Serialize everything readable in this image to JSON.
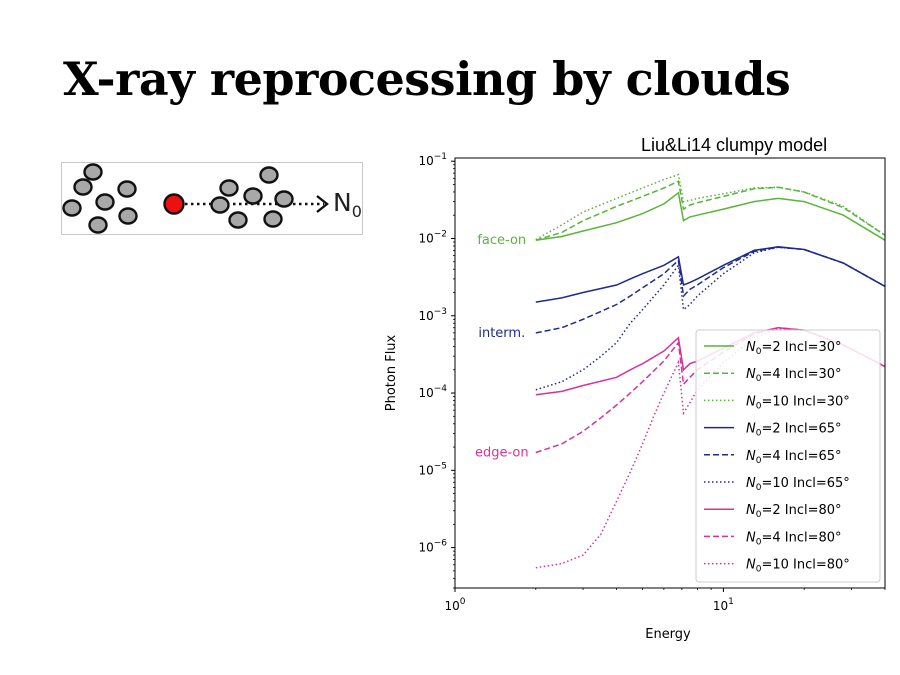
{
  "slide": {
    "title": "X-ray reprocessing by clouds"
  },
  "diagram": {
    "label_main": "N",
    "label_sub": "0"
  },
  "chart_data": {
    "type": "line",
    "title": "Liu&Li14 clumpy model",
    "xlabel": "Energy",
    "ylabel": "Photon Flux",
    "xscale": "log",
    "yscale": "log",
    "xlim": [
      1,
      40
    ],
    "ylim": [
      3e-07,
      0.11
    ],
    "grid": false,
    "legend_placement": "lower-right",
    "x_ticks": [
      {
        "value": 1,
        "base": "10",
        "exp": "0"
      },
      {
        "value": 10,
        "base": "10",
        "exp": "1"
      }
    ],
    "y_ticks": [
      {
        "value": 0.1,
        "base": "10",
        "exp": "−1"
      },
      {
        "value": 0.01,
        "base": "10",
        "exp": "−2"
      },
      {
        "value": 0.001,
        "base": "10",
        "exp": "−3"
      },
      {
        "value": 0.0001,
        "base": "10",
        "exp": "−4"
      },
      {
        "value": 1e-05,
        "base": "10",
        "exp": "−5"
      },
      {
        "value": 1e-06,
        "base": "10",
        "exp": "−6"
      }
    ],
    "annotations": [
      {
        "text": "face-on",
        "color": "#5ab43c",
        "x": 1.6,
        "y": 0.0095
      },
      {
        "text": "interm.",
        "color": "#1f2a8c",
        "x": 1.6,
        "y": 0.0006
      },
      {
        "text": "edge-on",
        "color": "#d6339a",
        "x": 1.6,
        "y": 1.7e-05
      }
    ],
    "series": [
      {
        "name": "N0=2 Incl=30°",
        "legend_main": "N",
        "legend_sub": "0",
        "legend_rest": "=2 Incl=30°",
        "color": "#5ab43c",
        "dash": "solid",
        "x": [
          2,
          2.5,
          3,
          4,
          5,
          6,
          6.8,
          7.1,
          7.5,
          8,
          10,
          13,
          16,
          20,
          28,
          40
        ],
        "y": [
          0.0095,
          0.0106,
          0.0125,
          0.016,
          0.021,
          0.028,
          0.039,
          0.017,
          0.019,
          0.02,
          0.024,
          0.03,
          0.033,
          0.03,
          0.02,
          0.0095
        ]
      },
      {
        "name": "N0=4 Incl=30°",
        "legend_main": "N",
        "legend_sub": "0",
        "legend_rest": "=4 Incl=30°",
        "color": "#5ab43c",
        "dash": "dashed",
        "x": [
          2,
          2.5,
          3,
          4,
          5,
          6,
          6.8,
          7.1,
          7.5,
          8,
          10,
          13,
          16,
          20,
          28,
          40
        ],
        "y": [
          0.0095,
          0.012,
          0.017,
          0.026,
          0.035,
          0.045,
          0.055,
          0.024,
          0.027,
          0.029,
          0.035,
          0.044,
          0.046,
          0.04,
          0.025,
          0.011
        ]
      },
      {
        "name": "N0=10 Incl=30°",
        "legend_main": "N",
        "legend_sub": "0",
        "legend_rest": "=10 Incl=30°",
        "color": "#5ab43c",
        "dash": "dotted",
        "x": [
          2,
          2.5,
          3,
          4,
          5,
          6,
          6.8,
          7.1,
          7.5,
          8,
          10,
          13,
          16,
          20,
          28,
          40
        ],
        "y": [
          0.0097,
          0.015,
          0.022,
          0.033,
          0.045,
          0.058,
          0.067,
          0.03,
          0.031,
          0.033,
          0.038,
          0.045,
          0.046,
          0.04,
          0.026,
          0.011
        ]
      },
      {
        "name": "N0=2 Incl=65°",
        "legend_main": "N",
        "legend_sub": "0",
        "legend_rest": "=2 Incl=65°",
        "color": "#1f2a8c",
        "dash": "solid",
        "x": [
          2,
          2.5,
          3,
          4,
          4.5,
          5,
          6,
          6.8,
          7.1,
          7.5,
          8,
          10,
          13,
          16,
          20,
          28,
          40
        ],
        "y": [
          0.0015,
          0.0017,
          0.002,
          0.0025,
          0.003,
          0.0035,
          0.0045,
          0.0058,
          0.0025,
          0.0027,
          0.003,
          0.0045,
          0.007,
          0.0078,
          0.0072,
          0.0048,
          0.0024
        ]
      },
      {
        "name": "N0=4 Incl=65°",
        "legend_main": "N",
        "legend_sub": "0",
        "legend_rest": "=4 Incl=65°",
        "color": "#1f2a8c",
        "dash": "dashed",
        "x": [
          2,
          2.5,
          3,
          4,
          4.5,
          5,
          6,
          6.8,
          7.1,
          7.5,
          8,
          10,
          13,
          16,
          20,
          28,
          40
        ],
        "y": [
          0.0006,
          0.0007,
          0.0009,
          0.0014,
          0.0018,
          0.0023,
          0.0035,
          0.0052,
          0.0018,
          0.0022,
          0.0025,
          0.0042,
          0.0068,
          0.0077,
          0.0072,
          0.0048,
          0.0024
        ]
      },
      {
        "name": "N0=10 Incl=65°",
        "legend_main": "N",
        "legend_sub": "0",
        "legend_rest": "=10 Incl=65°",
        "color": "#1f2a8c",
        "dash": "dotted",
        "x": [
          2,
          2.5,
          3,
          3.5,
          4,
          4.5,
          5,
          6,
          6.8,
          7.1,
          7.5,
          8,
          10,
          13,
          16,
          20,
          28,
          40
        ],
        "y": [
          0.00011,
          0.00014,
          0.0002,
          0.0003,
          0.00045,
          0.0008,
          0.0012,
          0.0025,
          0.0045,
          0.0012,
          0.0014,
          0.0018,
          0.0035,
          0.0065,
          0.0077,
          0.0072,
          0.0048,
          0.0024
        ]
      },
      {
        "name": "N0=2 Incl=80°",
        "legend_main": "N",
        "legend_sub": "0",
        "legend_rest": "=2 Incl=80°",
        "color": "#d6339a",
        "dash": "solid",
        "x": [
          2,
          2.5,
          3,
          4,
          4.5,
          5,
          6,
          6.8,
          7.1,
          7.5,
          8,
          10,
          13,
          16,
          20,
          28,
          40
        ],
        "y": [
          9.5e-05,
          0.000105,
          0.000125,
          0.00016,
          0.0002,
          0.00024,
          0.00035,
          0.00052,
          0.0002,
          0.00024,
          0.00026,
          0.00038,
          0.0006,
          0.0007,
          0.00065,
          0.00042,
          0.00022
        ]
      },
      {
        "name": "N0=4 Incl=80°",
        "legend_main": "N",
        "legend_sub": "0",
        "legend_rest": "=4 Incl=80°",
        "color": "#d6339a",
        "dash": "dashed",
        "x": [
          2,
          2.5,
          3,
          3.5,
          4,
          4.5,
          5,
          6,
          6.8,
          7.1,
          7.5,
          8,
          10,
          13,
          16,
          20,
          28,
          40
        ],
        "y": [
          1.7e-05,
          2.2e-05,
          3.2e-05,
          4.8e-05,
          7e-05,
          0.0001,
          0.00014,
          0.00026,
          0.00045,
          0.00013,
          0.00016,
          0.0002,
          0.00034,
          0.00058,
          0.0007,
          0.00065,
          0.00042,
          0.00022
        ]
      },
      {
        "name": "N0=10 Incl=80°",
        "legend_main": "N",
        "legend_sub": "0",
        "legend_rest": "=10 Incl=80°",
        "color": "#d6339a",
        "dash": "dotted",
        "x": [
          2,
          2.5,
          3,
          3.5,
          4,
          4.5,
          5,
          5.5,
          6,
          6.5,
          6.8,
          7.1,
          7.5,
          8,
          10,
          13,
          16,
          20,
          28,
          40
        ],
        "y": [
          5.5e-07,
          6.2e-07,
          8e-07,
          1.5e-06,
          4e-06,
          9.5e-06,
          2.2e-05,
          5e-05,
          0.0001,
          0.00018,
          0.00025,
          5.5e-05,
          7.5e-05,
          0.00011,
          0.00025,
          0.00052,
          0.00068,
          0.00065,
          0.00042,
          0.00022
        ]
      }
    ]
  }
}
